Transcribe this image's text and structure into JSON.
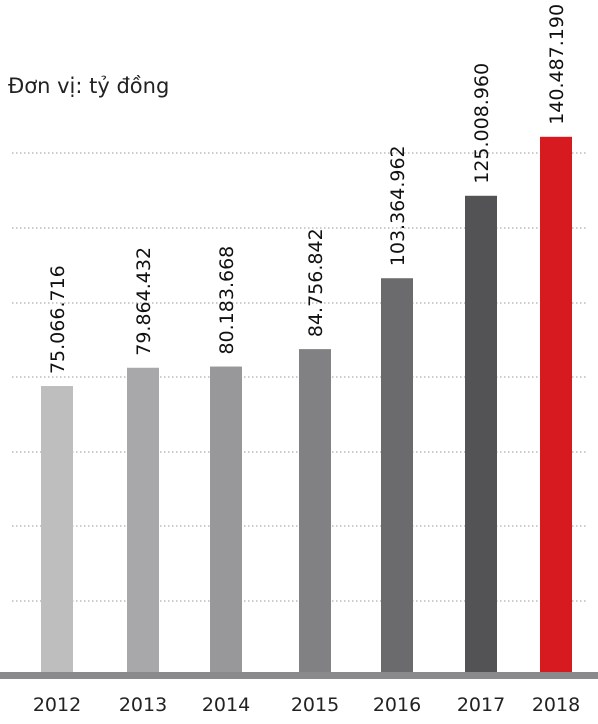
{
  "chart_data": {
    "type": "bar",
    "unit_label": "Đơn vị: tỷ đồng",
    "categories": [
      "2012",
      "2013",
      "2014",
      "2015",
      "2016",
      "2017",
      "2018"
    ],
    "values": [
      75066.716,
      79864.432,
      80183.668,
      84756.842,
      103364.962,
      125008.96,
      140487.19
    ],
    "value_labels": [
      "75.066.716",
      "79.864.432",
      "80.183.668",
      "84.756.842",
      "103.364.962",
      "125.008.960",
      "140.487.190"
    ],
    "colors": [
      "#bebebf",
      "#a8a8aa",
      "#98989a",
      "#818184",
      "#6b6b6e",
      "#535356",
      "#d71920"
    ],
    "ylim": [
      0,
      141487
    ],
    "grid": true,
    "legend": "none"
  }
}
